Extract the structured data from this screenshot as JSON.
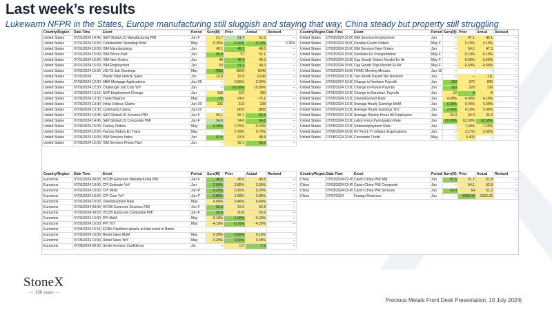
{
  "title": "Last week’s results",
  "subtitle": "Lukewarm NFPR in the States, Europe manufacturing still sluggish and staying that way, China steady but property still struggling",
  "logo": {
    "name": "StoneX",
    "sub": "— 100 years —"
  },
  "footer": "Precious Metals Front Desk Presentation, 10 July 2024|",
  "headers": [
    "Country/Region",
    "Date Time",
    "Event",
    "Period",
    "Surv(M)",
    "Prior",
    "Actual",
    "Revised"
  ],
  "tables": {
    "us_left": [
      [
        "United States",
        "07/01/2024 14:45",
        "S&P Global US Manufacturing PMI",
        "Jun F",
        "51.7",
        "51.7",
        "51.6",
        "--"
      ],
      [
        "United States",
        "07/01/2024 15:00",
        "Construction Spending MoM",
        "May",
        "0.20%",
        "-0.10%",
        "-0.10%",
        "0.30%"
      ],
      [
        "United States",
        "07/01/2024 15:00",
        "ISM Manufacturing",
        "Jun",
        "49.1",
        "48.7",
        "48.5",
        "--"
      ],
      [
        "United States",
        "07/01/2024 15:00",
        "ISM Prices Paid",
        "Jun",
        "55.8",
        "57",
        "52.1",
        "--"
      ],
      [
        "United States",
        "07/01/2024 15:00",
        "ISM New Orders",
        "Jun",
        "49",
        "45.4",
        "49.3",
        "--"
      ],
      [
        "United States",
        "07/01/2024 15:00",
        "ISM Employment",
        "Jun",
        "50",
        "51.1",
        "49.3",
        "--"
      ],
      [
        "United States",
        "07/02/2024 15:00",
        "JOLTS Job Openings",
        "May",
        "7955",
        "8059",
        "8140",
        "--"
      ],
      [
        "United States",
        "07/02/2024",
        "Wards Total Vehicle Sales",
        "Jun",
        "15.8",
        "15.9",
        "13.42",
        "--"
      ],
      [
        "United States",
        "07/03/2024 12:00",
        "MBA Mortgage Applications",
        "Jun-28",
        "--",
        "0.80%",
        "-2.60%",
        "--"
      ],
      [
        "United States",
        "07/03/2024 12:30",
        "Challenger Job Cuts YoY",
        "Jun",
        "--",
        "-20.30%",
        "19.80%",
        "--"
      ],
      [
        "United States",
        "07/03/2024 13:15",
        "ADP Employment Change",
        "Jun",
        "158",
        "152",
        "150",
        "--"
      ],
      [
        "United States",
        "07/03/2024 13:30",
        "Trade Balance",
        "May",
        "-76",
        "-74.6",
        "-75.1",
        "--"
      ],
      [
        "United States",
        "07/03/2024 13:30",
        "Initial Jobless Claims",
        "Jun-29",
        "235",
        "233",
        "238",
        "--"
      ],
      [
        "United States",
        "07/03/2024 13:30",
        "Continuing Claims",
        "Jun-22",
        "--",
        "1839",
        "1858",
        "--"
      ],
      [
        "United States",
        "07/03/2024 14:45",
        "S&P Global US Services PMI",
        "Jun F",
        "55.1",
        "55.1",
        "55.3",
        "--"
      ],
      [
        "United States",
        "07/03/2024 14:45",
        "S&P Global US Composite PMI",
        "Jun F",
        "54.6",
        "54.6",
        "54.8",
        "--"
      ],
      [
        "United States",
        "07/03/2024 15:00",
        "Factory Orders",
        "May",
        "0.30%",
        "0.70%",
        "-0.50%",
        "--"
      ],
      [
        "United States",
        "07/03/2024 15:00",
        "Factory Orders Ex Trans",
        "May",
        "--",
        "0.70%",
        "0.70%",
        "--"
      ],
      [
        "United States",
        "07/03/2024 15:00",
        "ISM Services Index",
        "Jun",
        "52.5",
        "53.8",
        "48.8",
        "--"
      ],
      [
        "United States",
        "07/03/2024 15:00",
        "ISM Services Prices Paid",
        "Jun",
        "--",
        "58.1",
        "56.3",
        "--"
      ]
    ],
    "us_right": [
      [
        "United States",
        "07/03/2024 15:00",
        "ISM Services Employment",
        "Jun",
        "--",
        "47.1",
        "46.1",
        "--"
      ],
      [
        "United States",
        "07/03/2024 15:00",
        "Durable Goods Orders",
        "May F",
        "--",
        "0.10%",
        "0.10%",
        "--"
      ],
      [
        "United States",
        "07/03/2024 15:00",
        "ISM Services New Orders",
        "Jun",
        "--",
        "54.1",
        "47.3",
        "--"
      ],
      [
        "United States",
        "07/03/2024 15:00",
        "Durables Ex Transportation",
        "May F",
        "--",
        "-0.10%",
        "-0.10%",
        "--"
      ],
      [
        "United States",
        "07/03/2024 15:00",
        "Cap Goods Orders Nondef Ex Air",
        "May F",
        "--",
        "-0.60%",
        "-0.60%",
        "--"
      ],
      [
        "United States",
        "07/03/2024 15:00",
        "Cap Goods Ship Nondef Ex Air",
        "May F",
        "--",
        "-0.50%",
        "-0.60%",
        "--"
      ],
      [
        "United States",
        "07/03/2024 19:00",
        "FOMC Meeting Minutes",
        "Jun-12",
        "--",
        "--",
        "--",
        "--"
      ],
      [
        "United States",
        "07/05/2024 13:30",
        "Two-Month Payroll Net Revision",
        "Jun",
        "--",
        "--",
        "-111",
        "--"
      ],
      [
        "United States",
        "07/05/2024 13:30",
        "Change in Nonfarm Payrolls",
        "Jun",
        "190",
        "272",
        "206",
        "--"
      ],
      [
        "United States",
        "07/05/2024 13:30",
        "Change in Private Payrolls",
        "Jun",
        "163",
        "229",
        "136",
        "--"
      ],
      [
        "United States",
        "07/05/2024 13:30",
        "Change in Manufact. Payrolls",
        "Jun",
        "10",
        "8",
        "-8",
        "--"
      ],
      [
        "United States",
        "07/05/2024 13:30",
        "Unemployment Rate",
        "Jun",
        "4.00%",
        "4.00%",
        "4.10%",
        "--"
      ],
      [
        "United States",
        "07/05/2024 13:30",
        "Average Hourly Earnings MoM",
        "Jun",
        "0.30%",
        "0.40%",
        "0.30%",
        "--"
      ],
      [
        "United States",
        "07/05/2024 13:30",
        "Average Hourly Earnings YoY",
        "Jun",
        "3.90%",
        "4.10%",
        "3.90%",
        "--"
      ],
      [
        "United States",
        "07/05/2024 13:30",
        "Average Weekly Hours All Employees",
        "Jun",
        "34.3",
        "34.3",
        "34.3",
        "--"
      ],
      [
        "United States",
        "07/05/2024 13:30",
        "Labor Force Participation Rate",
        "Jun",
        "62.60%",
        "62.50%",
        "62.60%",
        "--"
      ],
      [
        "United States",
        "07/05/2024 13:30",
        "Underemployment Rate",
        "Jun",
        "--",
        "7.40%",
        "7.40%",
        "--"
      ],
      [
        "United States",
        "07/05/2024 16:00",
        "NY Fed 1-Yr Inflation Expectations",
        "Jun",
        "--",
        "3.17%",
        "3.02%",
        "--"
      ],
      [
        "United States",
        "07/08/2024 20:00",
        "Consumer Credit",
        "May",
        "--",
        "6.403",
        "--",
        "--"
      ]
    ],
    "eu_left": [
      [
        "Eurozone",
        "07/01/2024 09:00",
        "HCOB Eurozone Manufacturing PMI",
        "Jun F",
        "45.6",
        "45.6",
        "45.8",
        "--"
      ],
      [
        "Eurozone",
        "07/02/2024 10:00",
        "CPI Estimate YoY",
        "Jun",
        "2.50%",
        "2.60%",
        "2.50%",
        "--"
      ],
      [
        "Eurozone",
        "07/02/2024 10:00",
        "CPI MoM",
        "Jun P",
        "0.20%",
        "0.20%",
        "0.20%",
        "--"
      ],
      [
        "Eurozone",
        "07/02/2024 10:00",
        "CPI Core YoY",
        "Jun P",
        "2.80%",
        "2.90%",
        "2.90%",
        "--"
      ],
      [
        "Eurozone",
        "07/02/2024 10:00",
        "Unemployment Rate",
        "May",
        "6.40%",
        "6.40%",
        "6.40%",
        "--"
      ],
      [
        "Eurozone",
        "07/03/2024 09:00",
        "HCOB Eurozone Services PMI",
        "Jun F",
        "52.6",
        "52.6",
        "52.8",
        "--"
      ],
      [
        "Eurozone",
        "07/03/2024 09:00",
        "HCOB Eurozone Composite PMI",
        "Jun F",
        "50.8",
        "50.8",
        "50.9",
        "--"
      ],
      [
        "Eurozone",
        "07/03/2024 10:00",
        "PPI MoM",
        "May",
        "-0.10%",
        "-1.00%",
        "-0.20%",
        "--"
      ],
      [
        "Eurozone",
        "07/03/2024 10:00",
        "PPI YoY",
        "May",
        "-4.10%",
        "-5.70%",
        "-4.20%",
        "--"
      ],
      [
        "Eurozone",
        "07/04/2024 15:15",
        "ECB's Cipollone speaks at Istat event in Rome",
        "",
        "",
        "",
        "",
        ""
      ],
      [
        "Eurozone",
        "07/05/2024 10:00",
        "Retail Sales MoM",
        "May",
        "0.20%",
        "-0.50%",
        "0.10%",
        "--"
      ],
      [
        "Eurozone",
        "07/05/2024 10:00",
        "Retail Sales YoY",
        "May",
        "0.20%",
        "0.00%",
        "0.30%",
        "--"
      ],
      [
        "Eurozone",
        "07/08/2024 09:30",
        "Sentix Investor Confidence",
        "Jul",
        "--",
        "0.3",
        "-7.3",
        "--"
      ]
    ],
    "cn_right": [
      [
        "China",
        "07/01/2024 02:45",
        "Caixin China PMI Mfg",
        "Jun",
        "51.5",
        "51.7",
        "51.8",
        "--"
      ],
      [
        "China",
        "07/03/2024 02:45",
        "Caixin China PMI Composite",
        "Jun",
        "--",
        "54.1",
        "52.8",
        "--"
      ],
      [
        "China",
        "07/03/2024 02:45",
        "Caixin China PMI Services",
        "Jun",
        "53.4",
        "54",
        "51.2",
        "--"
      ],
      [
        "China",
        "07/07/2024",
        "Foreign Reserves",
        "Jun",
        "--",
        "3232.04",
        "3222.36",
        "--"
      ]
    ]
  },
  "highlights": {
    "us_left": [
      [
        "y",
        "lg",
        "y"
      ],
      [
        "y",
        "g",
        "g"
      ],
      [
        "y",
        "g",
        "y"
      ],
      [
        "g",
        "y",
        "y"
      ],
      [
        "y",
        "g",
        "y"
      ],
      [
        "y",
        "g",
        "y"
      ],
      [
        "g",
        "y",
        "y"
      ],
      [
        "y",
        "y",
        "y"
      ],
      [
        "",
        "y",
        "y"
      ],
      [
        "",
        "g",
        "y"
      ],
      [
        "y",
        "y",
        "y"
      ],
      [
        "g",
        "y",
        "y"
      ],
      [
        "y",
        "y",
        "y"
      ],
      [
        "",
        "y",
        "y"
      ],
      [
        "y",
        "y",
        "g"
      ],
      [
        "lg",
        "y",
        "g"
      ],
      [
        "g",
        "y",
        "y"
      ],
      [
        "",
        "y",
        "y"
      ],
      [
        "g",
        "y",
        "y"
      ],
      [
        "",
        "y",
        "g"
      ]
    ],
    "us_right": [
      [
        "",
        "y",
        "y"
      ],
      [
        "",
        "y",
        "y"
      ],
      [
        "",
        "y",
        "y"
      ],
      [
        "",
        "y",
        "y"
      ],
      [
        "",
        "y",
        "y"
      ],
      [
        "",
        "y",
        "y"
      ],
      [
        "",
        "",
        ""
      ],
      [
        "",
        "y",
        "y"
      ],
      [
        "g",
        "y",
        "y"
      ],
      [
        "g",
        "y",
        "y"
      ],
      [
        "y",
        "g",
        "y"
      ],
      [
        "y",
        "y",
        "y"
      ],
      [
        "g",
        "y",
        "y"
      ],
      [
        "g",
        "y",
        "y"
      ],
      [
        "y",
        "y",
        "y"
      ],
      [
        "g",
        "y",
        "g"
      ],
      [
        "",
        "y",
        "y"
      ],
      [
        "",
        "y",
        "y"
      ],
      [
        "",
        "y",
        ""
      ]
    ],
    "eu_left": [
      [
        "g",
        "y",
        "y"
      ],
      [
        "g",
        "y",
        "y"
      ],
      [
        "g",
        "y",
        "y"
      ],
      [
        "g",
        "y",
        "y"
      ],
      [
        "y",
        "y",
        "y"
      ],
      [
        "g",
        "y",
        "y"
      ],
      [
        "g",
        "y",
        "y"
      ],
      [
        "y",
        "g",
        "y"
      ],
      [
        "y",
        "g",
        "y"
      ],
      [
        "",
        "",
        "",
        ""
      ],
      [
        "y",
        "g",
        "y"
      ],
      [
        "y",
        "g",
        "y"
      ],
      [
        "",
        "y",
        "g"
      ]
    ],
    "cn_right": [
      [
        "g",
        "y",
        "y"
      ],
      [
        "",
        "y",
        "y"
      ],
      [
        "g",
        "y",
        "y"
      ],
      [
        "",
        "g",
        "y"
      ]
    ]
  }
}
